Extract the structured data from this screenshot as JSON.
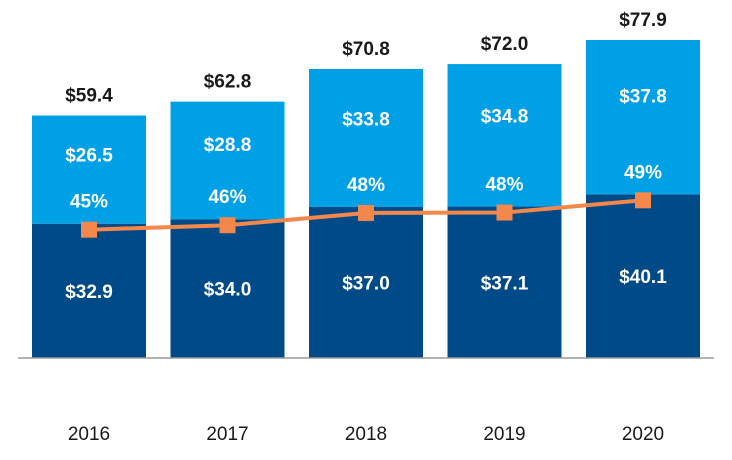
{
  "chart_data": {
    "type": "bar",
    "stacked": true,
    "title": "",
    "xlabel": "",
    "ylabel": "",
    "categories": [
      "2016",
      "2017",
      "2018",
      "2019",
      "2020"
    ],
    "series": [
      {
        "name": "bottom segment",
        "color": "#004B87",
        "values": [
          32.9,
          34.0,
          37.0,
          37.1,
          40.1
        ],
        "labels": [
          "$32.9",
          "$34.0",
          "$37.0",
          "$37.1",
          "$40.1"
        ]
      },
      {
        "name": "top segment",
        "color": "#00A0E6",
        "values": [
          26.5,
          28.8,
          33.8,
          34.8,
          37.8
        ],
        "labels": [
          "$26.5",
          "$28.8",
          "$33.8",
          "$34.8",
          "$37.8"
        ]
      }
    ],
    "totals": [
      59.4,
      62.8,
      70.8,
      72.0,
      77.9
    ],
    "total_labels": [
      "$59.4",
      "$62.8",
      "$70.8",
      "$72.0",
      "$77.9"
    ],
    "line_series": {
      "name": "share",
      "color": "#F4874B",
      "values": [
        45,
        46,
        48,
        48,
        49
      ],
      "labels": [
        "45%",
        "46%",
        "48%",
        "48%",
        "49%"
      ]
    },
    "ylim": [
      0,
      80
    ],
    "grid": false
  }
}
